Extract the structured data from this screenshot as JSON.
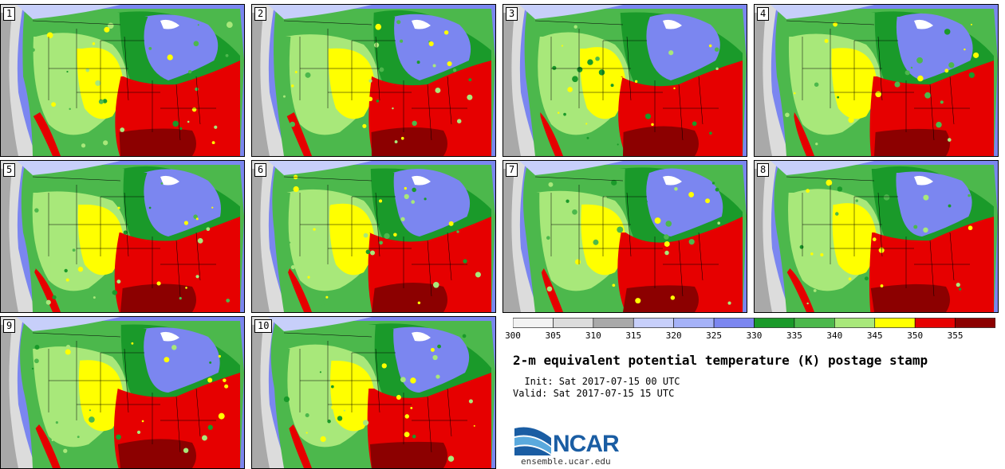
{
  "panels": [
    {
      "label": "1"
    },
    {
      "label": "2"
    },
    {
      "label": "3"
    },
    {
      "label": "4"
    },
    {
      "label": "5"
    },
    {
      "label": "6"
    },
    {
      "label": "7"
    },
    {
      "label": "8"
    },
    {
      "label": "9"
    },
    {
      "label": "10"
    }
  ],
  "colorbar": {
    "ticks": [
      "300",
      "305",
      "310",
      "315",
      "320",
      "325",
      "330",
      "335",
      "340",
      "345",
      "350",
      "355"
    ],
    "colors": [
      "#f2f2f2",
      "#dcdcdc",
      "#a9a9a9",
      "#c7cffa",
      "#a5b2f8",
      "#7b86f0",
      "#1a9a2a",
      "#4cb84c",
      "#a8e87a",
      "#ffff00",
      "#e60000",
      "#8c0000"
    ]
  },
  "title": "2-m equivalent potential temperature (K) postage stamp",
  "init": "  Init: Sat 2017-07-15 00 UTC",
  "valid": "Valid: Sat 2017-07-15 15 UTC",
  "logo": {
    "text": "NCAR",
    "site": "ensemble.ucar.edu"
  }
}
